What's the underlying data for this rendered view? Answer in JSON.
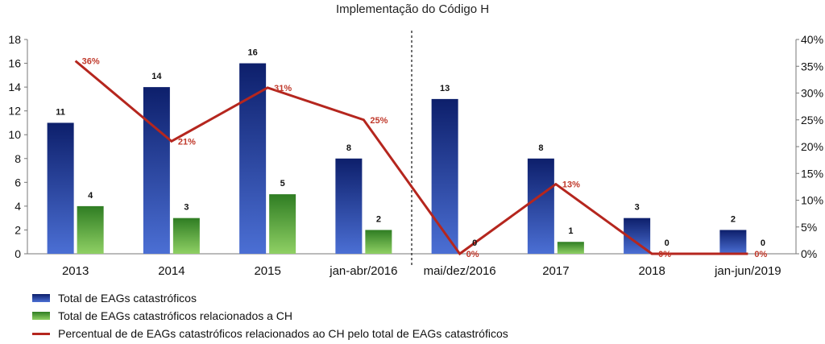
{
  "chart_data": {
    "type": "bar",
    "title": "Implementação do Código H",
    "categories": [
      "2013",
      "2014",
      "2015",
      "jan-abr/2016",
      "mai/dez/2016",
      "2017",
      "2018",
      "jan-jun/2019"
    ],
    "series": [
      {
        "name": "Total de EAGs catastróficos",
        "kind": "bar",
        "axis": "left",
        "color": "#1f3f9a",
        "values": [
          11,
          14,
          16,
          8,
          13,
          8,
          3,
          2
        ]
      },
      {
        "name": "Total de EAGs catastróficos relacionados a CH",
        "kind": "bar",
        "axis": "left",
        "color": "#5daa3c",
        "values": [
          4,
          3,
          5,
          2,
          0,
          1,
          0,
          0
        ]
      },
      {
        "name": "Percentual de de EAGs catastróficos relacionados ao CH pelo total de EAGs catastróficos",
        "kind": "line",
        "axis": "right",
        "color": "#b5261e",
        "values": [
          36,
          21,
          31,
          25,
          0,
          13,
          0,
          0
        ]
      }
    ],
    "bar_labels": [
      "11",
      "14",
      "16",
      "8",
      "13",
      "8",
      "3",
      "2"
    ],
    "ch_labels": [
      "4",
      "3",
      "5",
      "2",
      "0",
      "1",
      "0",
      "0"
    ],
    "pct_labels": [
      "36%",
      "21%",
      "31%",
      "25%",
      "0%",
      "13%",
      "0%",
      "0%"
    ],
    "ylim": [
      0,
      18
    ],
    "yticks": [
      "0",
      "2",
      "4",
      "6",
      "8",
      "10",
      "12",
      "14",
      "16",
      "18"
    ],
    "y2lim": [
      0,
      40
    ],
    "y2ticks": [
      "0%",
      "5%",
      "10%",
      "15%",
      "20%",
      "25%",
      "30%",
      "35%",
      "40%"
    ],
    "divider_after_category": 3,
    "legend_position": "bottom-left"
  }
}
